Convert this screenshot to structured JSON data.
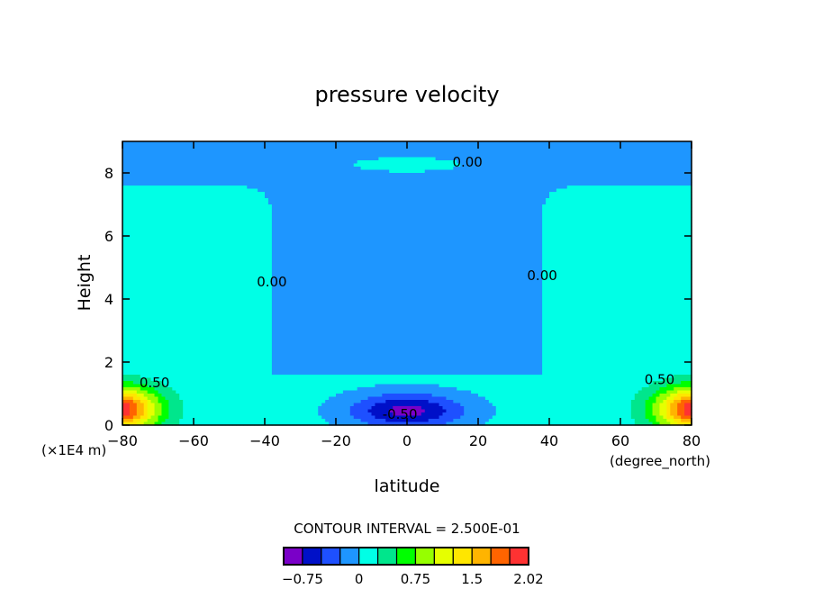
{
  "chart_data": {
    "type": "heatmap",
    "title": "pressure velocity",
    "xlabel": "latitude",
    "ylabel": "Height",
    "x_units": "(degree_north)",
    "y_units": "(×1E4 m)",
    "xlim": [
      -80,
      80
    ],
    "ylim": [
      0,
      9
    ],
    "x_ticks": [
      -80,
      -60,
      -40,
      -20,
      0,
      20,
      40,
      60,
      80
    ],
    "y_ticks": [
      0,
      2,
      4,
      6,
      8
    ],
    "contour_interval_text": "CONTOUR INTERVAL = 2.500E-01",
    "contour_labels": [
      {
        "text": "0.00",
        "x": 17,
        "y": 8.2
      },
      {
        "text": "0.00",
        "x": -38,
        "y": 4.4
      },
      {
        "text": "0.00",
        "x": 38,
        "y": 4.6
      },
      {
        "text": "0.50",
        "x": -71,
        "y": 1.2
      },
      {
        "text": "0.50",
        "x": 71,
        "y": 1.3
      },
      {
        "text": "-0.50",
        "x": -2,
        "y": 0.2
      }
    ],
    "colorbar": {
      "levels": [
        -1.0,
        -0.75,
        -0.5,
        -0.25,
        0,
        0.25,
        0.5,
        0.75,
        1.0,
        1.25,
        1.5,
        1.75,
        2.0,
        2.02
      ],
      "colors": [
        "#7a00c8",
        "#0010c8",
        "#1e50ff",
        "#1e96ff",
        "#00ffe6",
        "#00e68c",
        "#00ff00",
        "#96ff00",
        "#e6ff00",
        "#ffe600",
        "#ffb400",
        "#ff6400",
        "#ff3232"
      ],
      "tick_labels": [
        {
          "text": "-0.75",
          "value": -0.75
        },
        {
          "text": "0",
          "value": 0
        },
        {
          "text": "0.75",
          "value": 0.75
        },
        {
          "text": "1.5",
          "value": 1.5
        },
        {
          "text": "2.02",
          "value": 2.02
        }
      ]
    }
  }
}
